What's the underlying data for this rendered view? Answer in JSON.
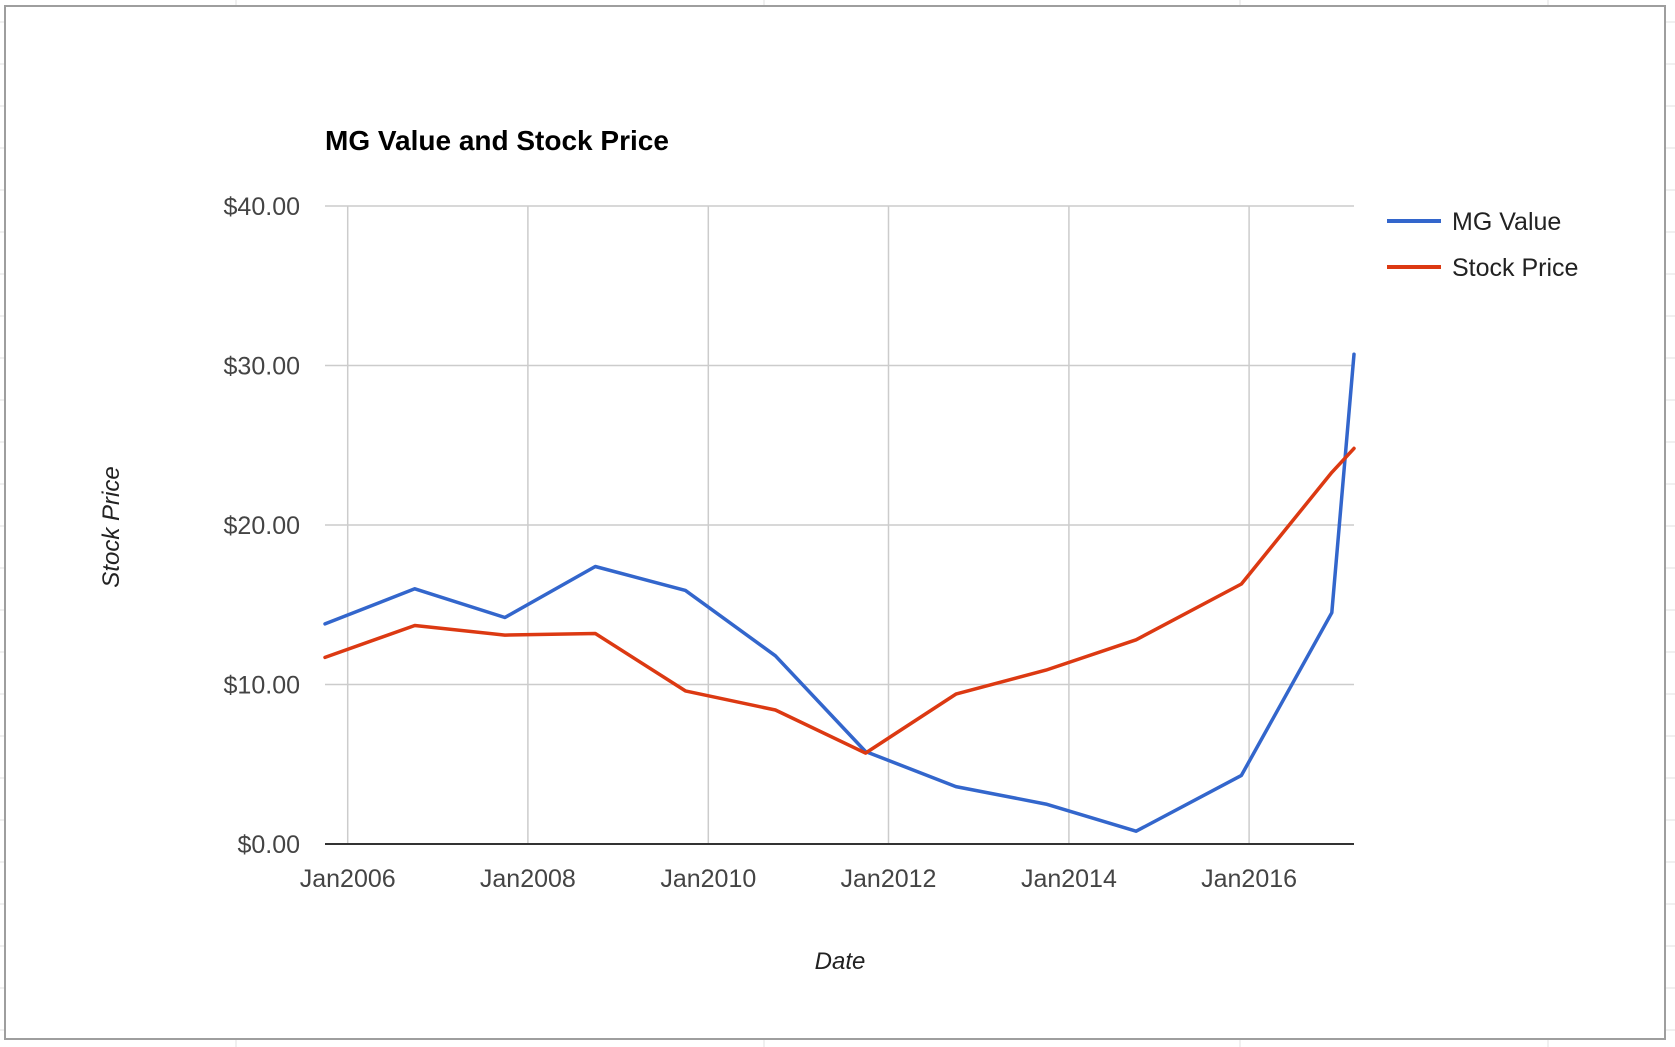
{
  "chart_data": {
    "type": "line",
    "title": "MG Value and Stock Price",
    "xlabel": "Date",
    "ylabel": "Stock Price",
    "ylim": [
      0,
      40
    ],
    "y_ticks": [
      "$0.00",
      "$10.00",
      "$20.00",
      "$30.00",
      "$40.00"
    ],
    "y_tick_values": [
      0,
      10,
      20,
      30,
      40
    ],
    "x_range": [
      "2005-10-01",
      "2017-03-01"
    ],
    "x_ticks": [
      "Jan2006",
      "Jan2008",
      "Jan2010",
      "Jan2012",
      "Jan2014",
      "Jan2016"
    ],
    "x_tick_dates": [
      "2006-01-01",
      "2008-01-01",
      "2010-01-01",
      "2012-01-01",
      "2014-01-01",
      "2016-01-01"
    ],
    "grid": true,
    "legend_position": "right",
    "series": [
      {
        "name": "MG Value",
        "color": "#3366cc",
        "x": [
          "2005-10-01",
          "2006-09-30",
          "2007-09-30",
          "2008-09-30",
          "2009-09-30",
          "2010-09-30",
          "2011-09-30",
          "2012-09-30",
          "2013-09-30",
          "2014-09-30",
          "2015-12-01",
          "2016-12-01",
          "2017-03-01"
        ],
        "values": [
          13.8,
          16.0,
          14.2,
          17.4,
          15.9,
          11.8,
          5.8,
          3.6,
          2.5,
          0.8,
          4.3,
          14.5,
          30.7
        ]
      },
      {
        "name": "Stock Price",
        "color": "#dc3912",
        "x": [
          "2005-10-01",
          "2006-09-30",
          "2007-09-30",
          "2008-09-30",
          "2009-09-30",
          "2010-09-30",
          "2011-09-30",
          "2012-09-30",
          "2013-09-30",
          "2014-09-30",
          "2015-12-01",
          "2016-12-01",
          "2017-03-01"
        ],
        "values": [
          11.7,
          13.7,
          13.1,
          13.2,
          9.6,
          8.4,
          5.7,
          9.4,
          10.9,
          12.8,
          16.3,
          23.3,
          24.8
        ]
      }
    ]
  }
}
